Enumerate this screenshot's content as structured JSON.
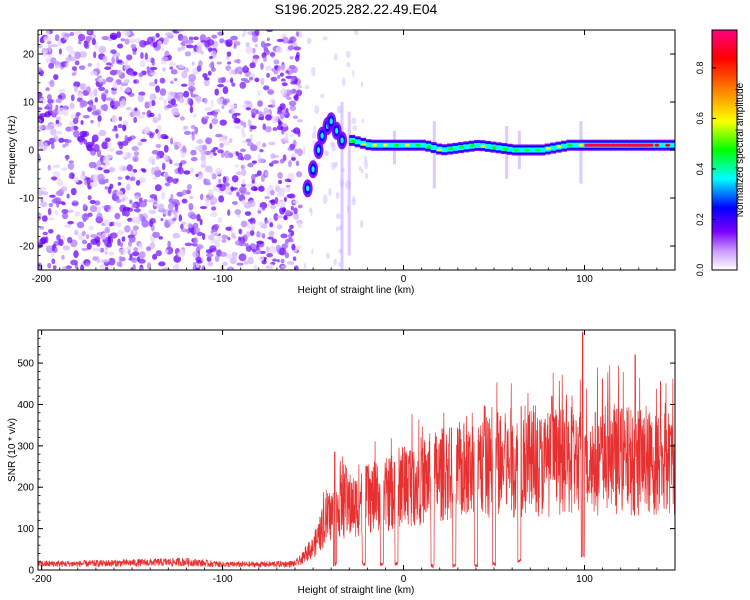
{
  "title": "S196.2025.282.22.49.E04",
  "chart_data": [
    {
      "type": "heatmap",
      "xlabel": "Height of straight line (km)",
      "ylabel": "Frequency (Hz)",
      "xlim": [
        -202,
        150
      ],
      "ylim": [
        -25,
        25
      ],
      "x_ticks": [
        -200,
        -100,
        0,
        100
      ],
      "y_ticks": [
        -20,
        -10,
        0,
        10,
        20
      ],
      "colorbar": {
        "label": "Normalized spectral amplitude",
        "range": [
          0.0,
          0.95
        ],
        "ticks": [
          0.0,
          0.2,
          0.4,
          0.6,
          0.8
        ],
        "colors": [
          "#ffffff",
          "#cc99ff",
          "#7a00ff",
          "#0000ff",
          "#00ffff",
          "#00ff00",
          "#ffff00",
          "#ff8000",
          "#ff0000",
          "#ff0080"
        ]
      },
      "features": {
        "noise_region_x": [
          -202,
          -57
        ],
        "onset_track": [
          [
            -53,
            -8
          ],
          [
            -50,
            -4
          ],
          [
            -47,
            0
          ],
          [
            -45,
            3
          ],
          [
            -42,
            5
          ],
          [
            -40,
            6
          ],
          [
            -37,
            4
          ],
          [
            -34,
            2
          ]
        ],
        "carrier_line": [
          [
            -30,
            2
          ],
          [
            -20,
            1
          ],
          [
            -10,
            1
          ],
          [
            0,
            1
          ],
          [
            10,
            1
          ],
          [
            20,
            0
          ],
          [
            40,
            1
          ],
          [
            60,
            0
          ],
          [
            75,
            0
          ],
          [
            90,
            1
          ],
          [
            100,
            1
          ],
          [
            150,
            1
          ]
        ]
      }
    },
    {
      "type": "line",
      "xlabel": "Height of straight line (km)",
      "ylabel": "SNR (10 * v/v)",
      "xlim": [
        -202,
        150
      ],
      "ylim": [
        0,
        580
      ],
      "x_ticks": [
        -200,
        -100,
        0,
        100
      ],
      "y_ticks": [
        0,
        100,
        200,
        300,
        400,
        500
      ],
      "series_color": "#e83030",
      "envelope": [
        [
          -202,
          20
        ],
        [
          -180,
          20
        ],
        [
          -160,
          22
        ],
        [
          -140,
          24
        ],
        [
          -120,
          26
        ],
        [
          -100,
          18
        ],
        [
          -80,
          18
        ],
        [
          -60,
          20
        ],
        [
          -50,
          60
        ],
        [
          -42,
          140
        ],
        [
          -35,
          170
        ],
        [
          -28,
          170
        ],
        [
          -20,
          190
        ],
        [
          -10,
          200
        ],
        [
          0,
          230
        ],
        [
          10,
          240
        ],
        [
          20,
          255
        ],
        [
          30,
          265
        ],
        [
          40,
          270
        ],
        [
          50,
          280
        ],
        [
          60,
          280
        ],
        [
          70,
          285
        ],
        [
          80,
          285
        ],
        [
          90,
          290
        ],
        [
          100,
          290
        ],
        [
          110,
          290
        ],
        [
          120,
          295
        ],
        [
          130,
          290
        ],
        [
          140,
          285
        ],
        [
          150,
          290
        ]
      ],
      "dips": [
        [
          -38,
          8
        ],
        [
          -22,
          10
        ],
        [
          -12,
          8
        ],
        [
          -4,
          10
        ],
        [
          16,
          5
        ],
        [
          28,
          5
        ],
        [
          40,
          6
        ],
        [
          50,
          10
        ],
        [
          64,
          18
        ],
        [
          99,
          30
        ]
      ],
      "peaks": [
        [
          -38,
          285
        ],
        [
          -20,
          250
        ],
        [
          -5,
          260
        ],
        [
          10,
          280
        ],
        [
          25,
          305
        ],
        [
          45,
          395
        ],
        [
          52,
          380
        ],
        [
          65,
          395
        ],
        [
          82,
          420
        ],
        [
          99,
          575
        ],
        [
          128,
          520
        ],
        [
          142,
          455
        ]
      ]
    }
  ]
}
